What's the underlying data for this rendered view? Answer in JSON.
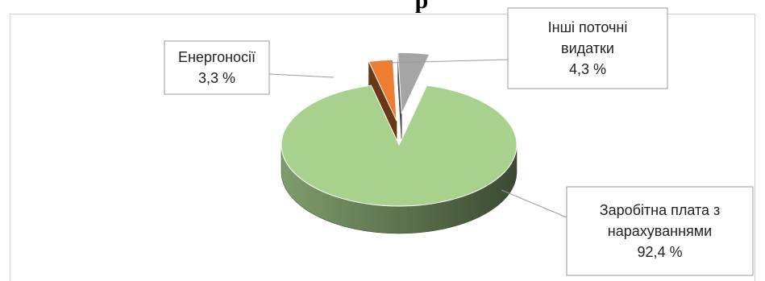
{
  "title": "р",
  "chart_data": {
    "type": "pie",
    "title": "р",
    "categories": [
      "Заробітна плата з нарахуваннями",
      "Енергоносії",
      "Інші поточні видатки"
    ],
    "values": [
      92.4,
      3.3,
      4.3
    ],
    "colors": {
      "Заробітна плата з нарахуваннями": "#a9d18e",
      "Енергоносії": "#ed7d31",
      "Інші поточні видатки": "#a5a5a5"
    },
    "labels": [
      {
        "category": "Енергоносії",
        "lines": [
          "Енергоносії",
          "3,3 %"
        ]
      },
      {
        "category": "Інші поточні видатки",
        "lines": [
          "Інші поточні",
          "видатки",
          "4,3 %"
        ]
      },
      {
        "category": "Заробітна плата з нарахуваннями",
        "lines": [
          "Заробітна плата з",
          "нарахуваннями",
          "92,4 %"
        ]
      }
    ],
    "style": "3d-exploded",
    "legend": "none"
  }
}
